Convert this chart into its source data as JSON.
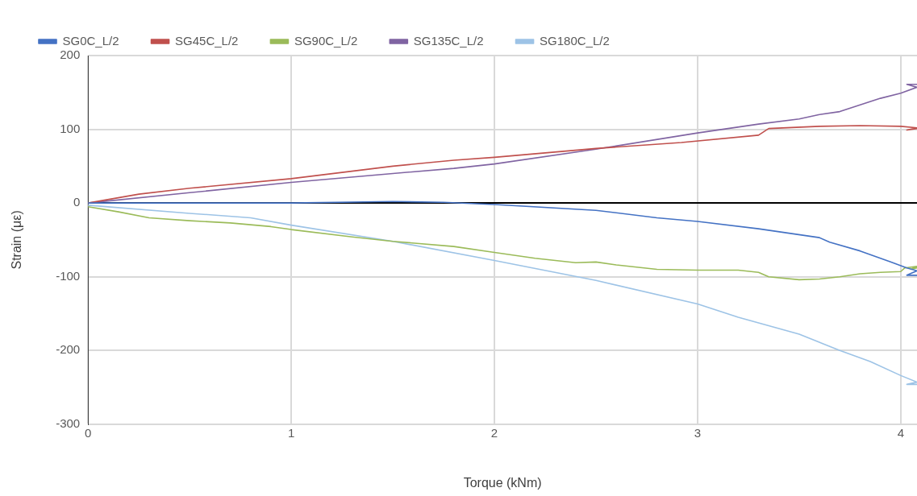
{
  "chart_data": {
    "type": "line",
    "xlabel": "Torque (kNm)",
    "ylabel": "Strain (με)",
    "xlim": [
      0,
      4.08
    ],
    "xticks": [
      0,
      1,
      2,
      3,
      4
    ],
    "ylim": [
      -300,
      200
    ],
    "yticks": [
      -300,
      -200,
      -100,
      0,
      100,
      200
    ],
    "grid": true,
    "legend": "top left",
    "marker": "none",
    "line_style": "solid",
    "series": [
      {
        "name": "SG0C_L/2",
        "color": "#4472c4",
        "x": [
          0,
          0.5,
          1,
          1.5,
          1.75,
          2,
          2.5,
          2.8,
          3,
          3.3,
          3.6,
          3.65,
          3.8,
          3.95,
          4.03,
          4.08,
          4.03,
          4.08
        ],
        "values": [
          0,
          0,
          0,
          2,
          1,
          -2,
          -10,
          -20,
          -25,
          -35,
          -47,
          -53,
          -65,
          -80,
          -88,
          -92,
          -98,
          -98
        ]
      },
      {
        "name": "SG45C_L/2",
        "color": "#c0504d",
        "x": [
          0,
          0.25,
          0.5,
          1,
          1.5,
          1.8,
          2,
          2.5,
          2.92,
          3.3,
          3.35,
          3.6,
          3.8,
          4,
          4.08,
          4.03,
          4.08
        ],
        "values": [
          0,
          12,
          20,
          33,
          50,
          58,
          62,
          74,
          82,
          92,
          101,
          104,
          105,
          104,
          102,
          99,
          101
        ]
      },
      {
        "name": "SG90C_L/2",
        "color": "#9bbb59",
        "x": [
          0,
          0.15,
          0.3,
          0.5,
          0.7,
          0.9,
          1,
          1.3,
          1.5,
          1.8,
          2,
          2.2,
          2.4,
          2.5,
          2.6,
          2.8,
          3,
          3.2,
          3.3,
          3.35,
          3.5,
          3.6,
          3.7,
          3.8,
          3.9,
          4,
          4.02,
          4.08,
          4.05,
          4.08
        ],
        "values": [
          -5,
          -12,
          -20,
          -24,
          -27,
          -32,
          -36,
          -46,
          -52,
          -59,
          -67,
          -75,
          -81,
          -80,
          -84,
          -90,
          -91,
          -91,
          -94,
          -100,
          -104,
          -103,
          -100,
          -96,
          -94,
          -93,
          -88,
          -86,
          -90,
          -88
        ]
      },
      {
        "name": "SG135C_L/2",
        "color": "#8064a2",
        "x": [
          0,
          0.5,
          1,
          1.5,
          1.8,
          2,
          2.5,
          3,
          3.3,
          3.5,
          3.6,
          3.7,
          3.8,
          3.9,
          4,
          4.08,
          4.03,
          4.08
        ],
        "values": [
          0,
          14,
          28,
          40,
          47,
          53,
          73,
          95,
          107,
          114,
          120,
          124,
          133,
          142,
          149,
          157,
          161,
          161
        ]
      },
      {
        "name": "SG180C_L/2",
        "color": "#9dc3e6",
        "x": [
          0,
          0.5,
          0.8,
          1,
          1.5,
          2,
          2.5,
          3,
          3.2,
          3.5,
          3.7,
          3.85,
          4,
          4.08,
          4.03,
          4.08
        ],
        "values": [
          -3,
          -14,
          -20,
          -30,
          -52,
          -78,
          -105,
          -137,
          -155,
          -178,
          -200,
          -215,
          -234,
          -243,
          -246,
          -246
        ]
      }
    ]
  }
}
